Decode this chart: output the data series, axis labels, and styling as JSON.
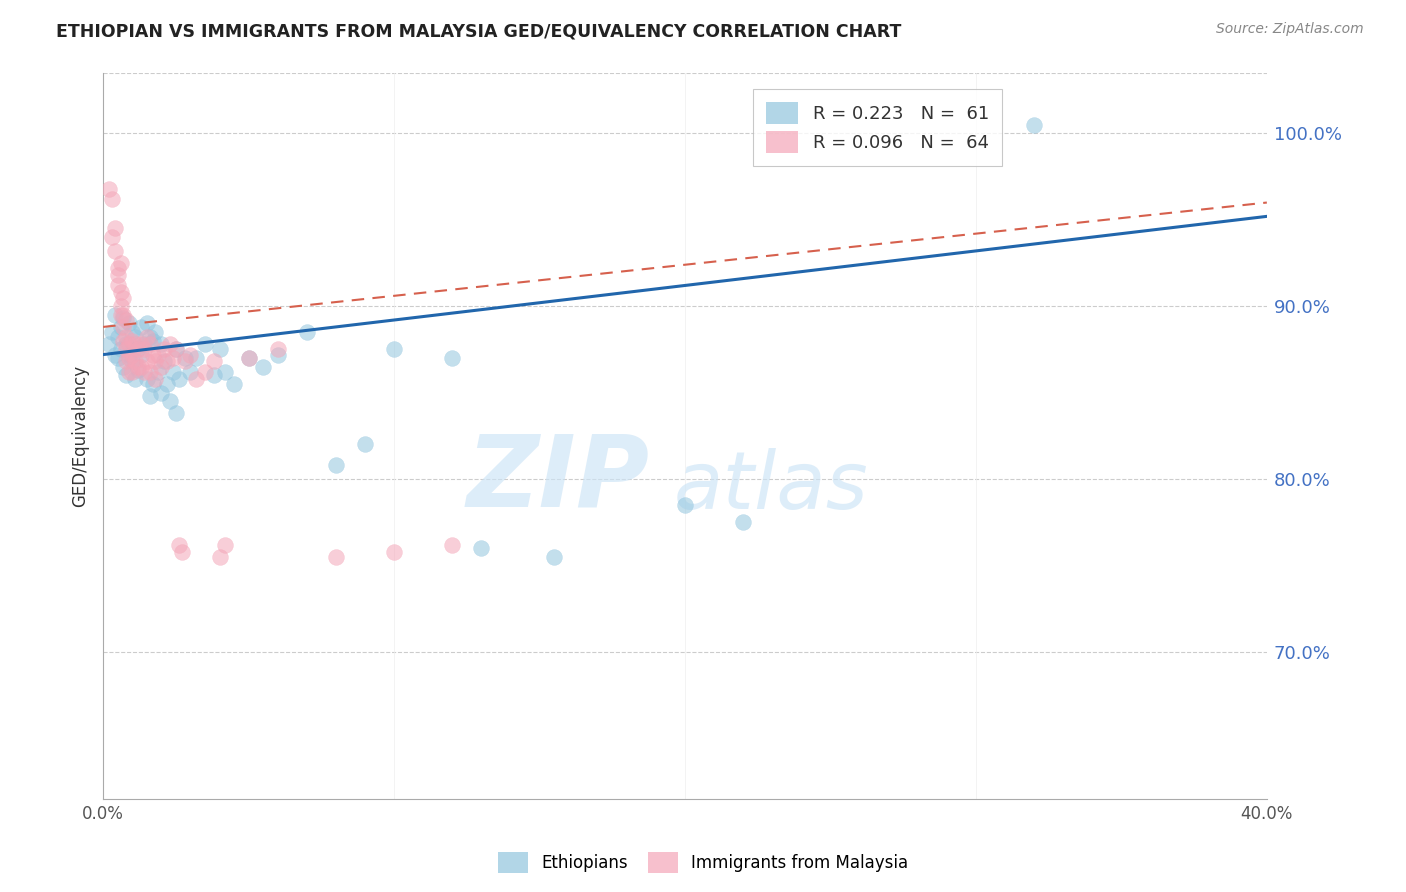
{
  "title": "ETHIOPIAN VS IMMIGRANTS FROM MALAYSIA GED/EQUIVALENCY CORRELATION CHART",
  "source": "Source: ZipAtlas.com",
  "ylabel": "GED/Equivalency",
  "right_yticks": [
    "100.0%",
    "90.0%",
    "80.0%",
    "70.0%"
  ],
  "right_ytick_vals": [
    1.0,
    0.9,
    0.8,
    0.7
  ],
  "xmin": 0.0,
  "xmax": 0.4,
  "ymin": 0.615,
  "ymax": 1.035,
  "blue_color": "#92c5de",
  "pink_color": "#f4a6b8",
  "trendline_blue": "#2166ac",
  "trendline_pink": "#d6604d",
  "watermark_zip": "ZIP",
  "watermark_atlas": "atlas",
  "blue_trend_x": [
    0.0,
    0.4
  ],
  "blue_trend_y": [
    0.872,
    0.952
  ],
  "pink_trend_x": [
    0.0,
    0.4
  ],
  "pink_trend_y": [
    0.888,
    0.96
  ],
  "blue_scatter": [
    [
      0.002,
      0.878
    ],
    [
      0.003,
      0.885
    ],
    [
      0.004,
      0.872
    ],
    [
      0.004,
      0.895
    ],
    [
      0.005,
      0.882
    ],
    [
      0.005,
      0.87
    ],
    [
      0.006,
      0.888
    ],
    [
      0.006,
      0.875
    ],
    [
      0.007,
      0.893
    ],
    [
      0.007,
      0.865
    ],
    [
      0.008,
      0.878
    ],
    [
      0.008,
      0.86
    ],
    [
      0.009,
      0.89
    ],
    [
      0.009,
      0.872
    ],
    [
      0.01,
      0.885
    ],
    [
      0.01,
      0.868
    ],
    [
      0.011,
      0.882
    ],
    [
      0.011,
      0.858
    ],
    [
      0.012,
      0.876
    ],
    [
      0.012,
      0.863
    ],
    [
      0.013,
      0.888
    ],
    [
      0.013,
      0.872
    ],
    [
      0.014,
      0.878
    ],
    [
      0.015,
      0.89
    ],
    [
      0.015,
      0.858
    ],
    [
      0.016,
      0.882
    ],
    [
      0.016,
      0.848
    ],
    [
      0.017,
      0.88
    ],
    [
      0.017,
      0.855
    ],
    [
      0.018,
      0.885
    ],
    [
      0.019,
      0.862
    ],
    [
      0.02,
      0.878
    ],
    [
      0.02,
      0.85
    ],
    [
      0.021,
      0.868
    ],
    [
      0.022,
      0.855
    ],
    [
      0.023,
      0.845
    ],
    [
      0.024,
      0.862
    ],
    [
      0.025,
      0.875
    ],
    [
      0.025,
      0.838
    ],
    [
      0.026,
      0.858
    ],
    [
      0.028,
      0.87
    ],
    [
      0.03,
      0.862
    ],
    [
      0.032,
      0.87
    ],
    [
      0.035,
      0.878
    ],
    [
      0.038,
      0.86
    ],
    [
      0.04,
      0.875
    ],
    [
      0.042,
      0.862
    ],
    [
      0.045,
      0.855
    ],
    [
      0.05,
      0.87
    ],
    [
      0.055,
      0.865
    ],
    [
      0.06,
      0.872
    ],
    [
      0.07,
      0.885
    ],
    [
      0.08,
      0.808
    ],
    [
      0.09,
      0.82
    ],
    [
      0.1,
      0.875
    ],
    [
      0.12,
      0.87
    ],
    [
      0.13,
      0.76
    ],
    [
      0.155,
      0.755
    ],
    [
      0.2,
      0.785
    ],
    [
      0.22,
      0.775
    ],
    [
      0.32,
      1.005
    ]
  ],
  "pink_scatter": [
    [
      0.002,
      0.968
    ],
    [
      0.003,
      0.962
    ],
    [
      0.003,
      0.94
    ],
    [
      0.004,
      0.945
    ],
    [
      0.004,
      0.932
    ],
    [
      0.005,
      0.922
    ],
    [
      0.005,
      0.918
    ],
    [
      0.005,
      0.912
    ],
    [
      0.006,
      0.925
    ],
    [
      0.006,
      0.908
    ],
    [
      0.006,
      0.9
    ],
    [
      0.006,
      0.895
    ],
    [
      0.007,
      0.905
    ],
    [
      0.007,
      0.895
    ],
    [
      0.007,
      0.888
    ],
    [
      0.007,
      0.88
    ],
    [
      0.008,
      0.892
    ],
    [
      0.008,
      0.882
    ],
    [
      0.008,
      0.875
    ],
    [
      0.008,
      0.868
    ],
    [
      0.009,
      0.878
    ],
    [
      0.009,
      0.87
    ],
    [
      0.009,
      0.862
    ],
    [
      0.01,
      0.88
    ],
    [
      0.01,
      0.872
    ],
    [
      0.01,
      0.862
    ],
    [
      0.011,
      0.878
    ],
    [
      0.011,
      0.868
    ],
    [
      0.012,
      0.875
    ],
    [
      0.012,
      0.865
    ],
    [
      0.013,
      0.878
    ],
    [
      0.013,
      0.865
    ],
    [
      0.014,
      0.875
    ],
    [
      0.014,
      0.862
    ],
    [
      0.015,
      0.882
    ],
    [
      0.015,
      0.868
    ],
    [
      0.016,
      0.878
    ],
    [
      0.016,
      0.862
    ],
    [
      0.017,
      0.872
    ],
    [
      0.018,
      0.868
    ],
    [
      0.018,
      0.858
    ],
    [
      0.019,
      0.872
    ],
    [
      0.02,
      0.865
    ],
    [
      0.021,
      0.875
    ],
    [
      0.022,
      0.868
    ],
    [
      0.023,
      0.878
    ],
    [
      0.024,
      0.87
    ],
    [
      0.025,
      0.875
    ],
    [
      0.026,
      0.762
    ],
    [
      0.027,
      0.758
    ],
    [
      0.028,
      0.868
    ],
    [
      0.03,
      0.872
    ],
    [
      0.032,
      0.858
    ],
    [
      0.035,
      0.862
    ],
    [
      0.038,
      0.868
    ],
    [
      0.04,
      0.755
    ],
    [
      0.042,
      0.762
    ],
    [
      0.05,
      0.87
    ],
    [
      0.06,
      0.875
    ],
    [
      0.08,
      0.755
    ],
    [
      0.1,
      0.758
    ],
    [
      0.12,
      0.762
    ]
  ]
}
